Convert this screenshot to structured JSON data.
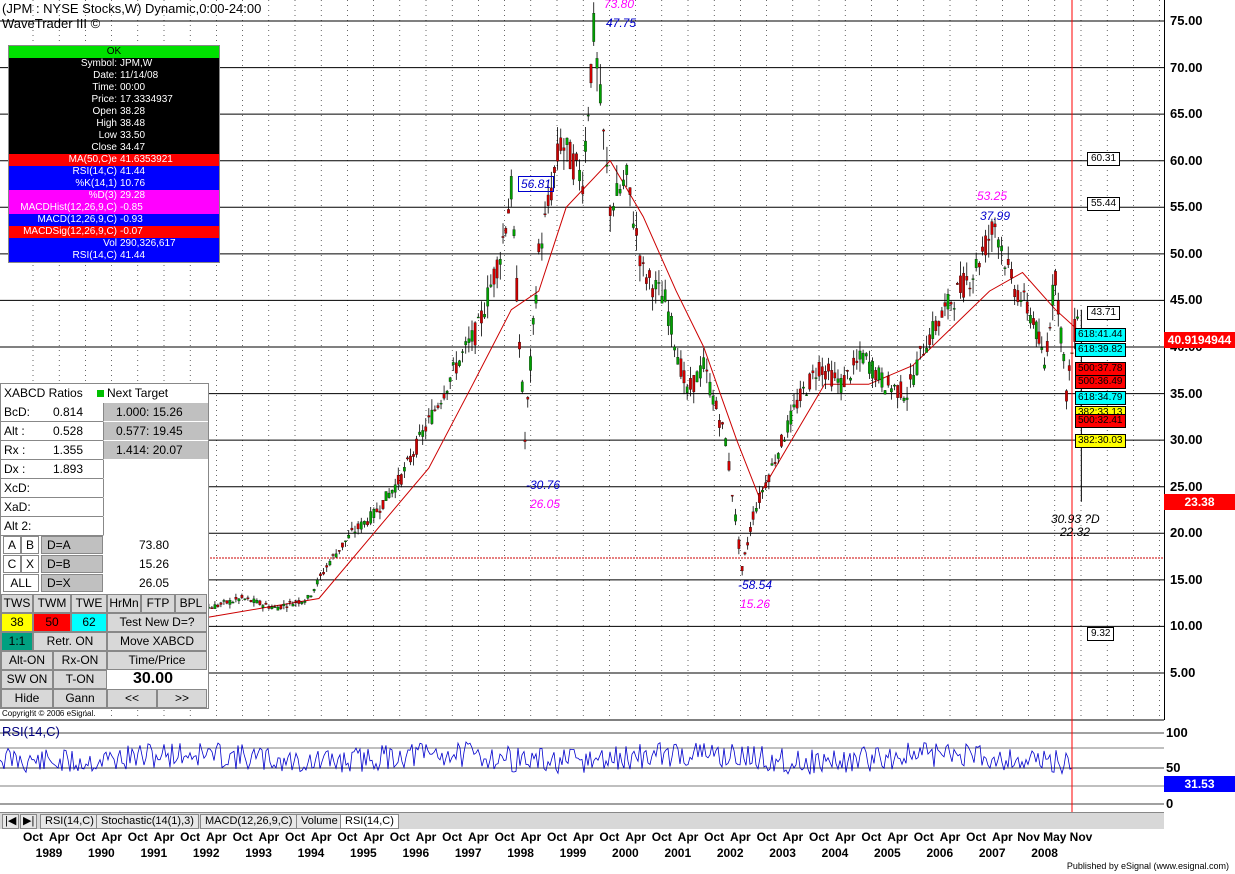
{
  "header": {
    "title_line1": "(JPM : NYSE Stocks,W) Dynamic,0:00-24:00",
    "title_line2": "WaveTrader III ©"
  },
  "info_box": {
    "status": "OK",
    "rows": [
      {
        "k": "Symbol:",
        "v": "JPM,W",
        "bg": "#000000"
      },
      {
        "k": "Date:",
        "v": "11/14/08",
        "bg": "#000000"
      },
      {
        "k": "Time:",
        "v": "00:00",
        "bg": "#000000"
      },
      {
        "k": "Price:",
        "v": "17.3334937",
        "bg": "#000000"
      },
      {
        "k": "Open",
        "v": "38.28",
        "bg": "#000000"
      },
      {
        "k": "High",
        "v": "38.48",
        "bg": "#000000"
      },
      {
        "k": "Low",
        "v": "33.50",
        "bg": "#000000"
      },
      {
        "k": "Close",
        "v": "34.47",
        "bg": "#000000"
      },
      {
        "k": "MA(50,C)e",
        "v": "41.6353921",
        "bg": "#ff0000"
      },
      {
        "k": "RSI(14,C)",
        "v": "41.44",
        "bg": "#0000ff"
      },
      {
        "k": "%K(14,1)",
        "v": "10.76",
        "bg": "#0000ff"
      },
      {
        "k": "%D(3)",
        "v": "29.28",
        "bg": "#ff00ff"
      },
      {
        "k": "MACDHist(12,26,9,C)",
        "v": "-0.85",
        "bg": "#ff00ff"
      },
      {
        "k": "MACD(12,26,9,C)",
        "v": "-0.93",
        "bg": "#0000ff"
      },
      {
        "k": "MACDSig(12,26,9,C)",
        "v": "-0.07",
        "bg": "#ff0000"
      },
      {
        "k": "Vol",
        "v": "290,326,617",
        "bg": "#0000ff"
      },
      {
        "k": "RSI(14,C)",
        "v": "41.44",
        "bg": "#0000ff"
      }
    ]
  },
  "panel": {
    "header": "XABCD Ratios",
    "next_target": "Next Target",
    "rows": [
      {
        "k": "BcD:",
        "v": "0.814",
        "t": "1.000: 15.26"
      },
      {
        "k": "Alt  :",
        "v": "0.528",
        "t": "0.577: 19.45"
      },
      {
        "k": "Rx   :",
        "v": "1.355",
        "t": "1.414: 20.07"
      },
      {
        "k": "Dx  :",
        "v": "1.893",
        "t": ""
      },
      {
        "k": "XcD:",
        "v": "",
        "t": ""
      },
      {
        "k": "XaD:",
        "v": "",
        "t": ""
      },
      {
        "k": "Alt 2:",
        "v": "",
        "t": ""
      }
    ],
    "d_rows": [
      {
        "a": "A",
        "b": "B",
        "label": "D=A",
        "val": "73.80"
      },
      {
        "a": "C",
        "b": "X",
        "label": "D=B",
        "val": "15.26"
      },
      {
        "a": "ALL",
        "b": "",
        "label": "D=X",
        "val": "26.05"
      }
    ],
    "buttons_row1": [
      "TWS",
      "TWM",
      "TWE",
      "HrMn",
      "FTP",
      "BPL"
    ],
    "numbers": [
      "38",
      "50",
      "62",
      "Test New D=?"
    ],
    "buttons_row3": [
      "1:1",
      "Retr. ON",
      "Move XABCD"
    ],
    "buttons_row4": [
      "Alt-ON",
      "Rx-ON",
      "Time/Price"
    ],
    "buttons_row5": [
      "SW ON",
      "T-ON",
      "30.00"
    ],
    "buttons_row6": [
      "Hide",
      "Gann",
      "<<",
      ">>"
    ]
  },
  "copyright": "Copyright © 2006 eSignal.",
  "price_axis": [
    "75.00",
    "70.00",
    "65.00",
    "60.00",
    "55.00",
    "50.00",
    "45.00",
    "40.00",
    "35.00",
    "30.00",
    "25.00",
    "20.00",
    "15.00",
    "10.00",
    "5.00"
  ],
  "price_boxes": {
    "current": "40.9194944",
    "last": "23.38",
    "rsi": "31.53"
  },
  "level_labels": [
    "60.31",
    "55.44",
    "43.71",
    "9.32"
  ],
  "colored_levels": [
    {
      "text": "618:41.44",
      "bg": "#00ffff"
    },
    {
      "text": "618:39.82",
      "bg": "#00ffff"
    },
    {
      "text": "500:37.78",
      "bg": "#ff0000"
    },
    {
      "text": "500:36.49",
      "bg": "#ff0000"
    },
    {
      "text": "618:34.79",
      "bg": "#00ffff"
    },
    {
      "text": "382:33.13",
      "bg": "#ffff00"
    },
    {
      "text": "500:32.41",
      "bg": "#ff0000"
    },
    {
      "text": "382:30.03",
      "bg": "#ffff00"
    }
  ],
  "annotations": {
    "top_pink": "73.80",
    "top_blue": "47.75",
    "peak1_box": "56.81",
    "low1_blue": "-30.76",
    "low1_pink": "26.05",
    "peak2_pink": "53.25",
    "peak2_blue": "37.99",
    "low2_blue": "-58.54",
    "low2_pink": "15.26",
    "target": "30.93 ?D",
    "target2": "22.32"
  },
  "rsi_panel": {
    "label": "RSI(14,C)",
    "ticks": [
      "100",
      "50",
      "0"
    ]
  },
  "tabs": [
    "RSI(14,C)",
    "Stochastic(14(1),3)",
    "MACD(12,26,9,C)",
    "Volume",
    "RSI(14,C)"
  ],
  "x_axis": {
    "months": [
      "Oct",
      "Apr",
      "Oct",
      "Apr",
      "Oct",
      "Apr",
      "Oct",
      "Apr",
      "Oct",
      "Apr",
      "Oct",
      "Apr",
      "Oct",
      "Apr",
      "Oct",
      "Apr",
      "Oct",
      "Apr",
      "Oct",
      "Apr",
      "Oct",
      "Apr",
      "Oct",
      "Apr",
      "Oct",
      "Apr",
      "Oct",
      "Apr",
      "Oct",
      "Apr",
      "Oct",
      "Apr",
      "Oct",
      "Apr",
      "Oct",
      "Apr",
      "Oct",
      "Apr",
      "Nov",
      "May",
      "Nov"
    ],
    "years": [
      "1989",
      "1990",
      "1991",
      "1992",
      "1993",
      "1994",
      "1995",
      "1996",
      "1997",
      "1998",
      "1999",
      "2000",
      "2001",
      "2002",
      "2003",
      "2004",
      "2005",
      "2006",
      "2007",
      "2008"
    ]
  },
  "publisher": "Published by eSignal (www.esignal.com)",
  "chart_data": {
    "type": "line",
    "title": "(JPM : NYSE Stocks,W) Dynamic,0:00-24:00",
    "ylim": [
      0,
      78
    ],
    "price_series": [
      {
        "t": 1989.8,
        "y": 11
      },
      {
        "t": 1990.3,
        "y": 12
      },
      {
        "t": 1990.8,
        "y": 7
      },
      {
        "t": 1991.3,
        "y": 6
      },
      {
        "t": 1991.8,
        "y": 9
      },
      {
        "t": 1992.4,
        "y": 9
      },
      {
        "t": 1993.0,
        "y": 12
      },
      {
        "t": 1993.6,
        "y": 13
      },
      {
        "t": 1994.2,
        "y": 12
      },
      {
        "t": 1994.8,
        "y": 13
      },
      {
        "t": 1995.2,
        "y": 17
      },
      {
        "t": 1995.6,
        "y": 20
      },
      {
        "t": 1996.0,
        "y": 22
      },
      {
        "t": 1996.5,
        "y": 26
      },
      {
        "t": 1997.0,
        "y": 32
      },
      {
        "t": 1997.5,
        "y": 38
      },
      {
        "t": 1997.9,
        "y": 42
      },
      {
        "t": 1998.3,
        "y": 50
      },
      {
        "t": 1998.5,
        "y": 56.81
      },
      {
        "t": 1998.75,
        "y": 30
      },
      {
        "t": 1999.0,
        "y": 50
      },
      {
        "t": 1999.4,
        "y": 62
      },
      {
        "t": 1999.8,
        "y": 58
      },
      {
        "t": 2000.0,
        "y": 73.8
      },
      {
        "t": 2000.3,
        "y": 55
      },
      {
        "t": 2000.6,
        "y": 58
      },
      {
        "t": 2000.9,
        "y": 48
      },
      {
        "t": 2001.3,
        "y": 45
      },
      {
        "t": 2001.7,
        "y": 35
      },
      {
        "t": 2002.0,
        "y": 38
      },
      {
        "t": 2002.4,
        "y": 30
      },
      {
        "t": 2002.7,
        "y": 16
      },
      {
        "t": 2002.9,
        "y": 22
      },
      {
        "t": 2003.3,
        "y": 28
      },
      {
        "t": 2003.7,
        "y": 34
      },
      {
        "t": 2004.1,
        "y": 38
      },
      {
        "t": 2004.5,
        "y": 36
      },
      {
        "t": 2004.9,
        "y": 39
      },
      {
        "t": 2005.3,
        "y": 36
      },
      {
        "t": 2005.7,
        "y": 35
      },
      {
        "t": 2006.0,
        "y": 40
      },
      {
        "t": 2006.5,
        "y": 45
      },
      {
        "t": 2006.9,
        "y": 48
      },
      {
        "t": 2007.3,
        "y": 53.25
      },
      {
        "t": 2007.6,
        "y": 47
      },
      {
        "t": 2008.0,
        "y": 43
      },
      {
        "t": 2008.2,
        "y": 38
      },
      {
        "t": 2008.4,
        "y": 48
      },
      {
        "t": 2008.6,
        "y": 35
      },
      {
        "t": 2008.8,
        "y": 44
      },
      {
        "t": 2008.87,
        "y": 23.38
      }
    ],
    "ma_series": [
      {
        "t": 1990.0,
        "y": 11
      },
      {
        "t": 1991.0,
        "y": 8
      },
      {
        "t": 1992.0,
        "y": 9
      },
      {
        "t": 1993.0,
        "y": 11
      },
      {
        "t": 1994.0,
        "y": 12
      },
      {
        "t": 1995.0,
        "y": 13
      },
      {
        "t": 1996.0,
        "y": 20
      },
      {
        "t": 1997.0,
        "y": 27
      },
      {
        "t": 1997.8,
        "y": 36
      },
      {
        "t": 1998.5,
        "y": 44
      },
      {
        "t": 1999.0,
        "y": 46
      },
      {
        "t": 1999.5,
        "y": 55
      },
      {
        "t": 2000.3,
        "y": 60
      },
      {
        "t": 2000.9,
        "y": 54
      },
      {
        "t": 2001.5,
        "y": 46
      },
      {
        "t": 2002.0,
        "y": 40
      },
      {
        "t": 2002.6,
        "y": 30
      },
      {
        "t": 2003.0,
        "y": 24
      },
      {
        "t": 2003.6,
        "y": 30
      },
      {
        "t": 2004.2,
        "y": 36
      },
      {
        "t": 2005.0,
        "y": 36
      },
      {
        "t": 2005.8,
        "y": 38
      },
      {
        "t": 2006.5,
        "y": 42
      },
      {
        "t": 2007.2,
        "y": 46
      },
      {
        "t": 2007.8,
        "y": 48
      },
      {
        "t": 2008.4,
        "y": 44
      },
      {
        "t": 2008.85,
        "y": 41.6
      }
    ],
    "rsi_series_range": [
      0,
      100
    ]
  }
}
